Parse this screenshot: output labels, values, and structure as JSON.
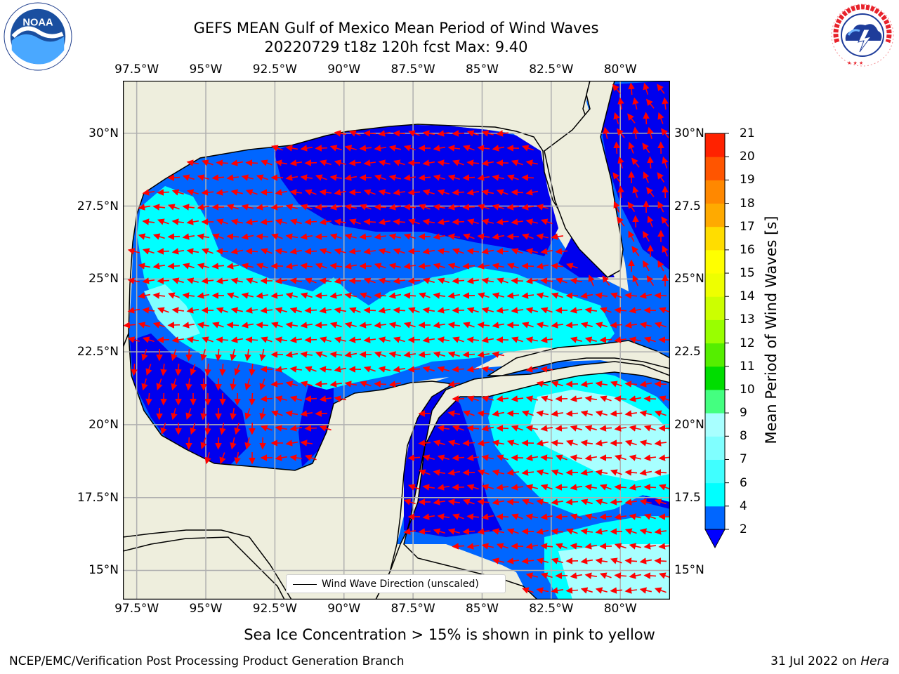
{
  "header": {
    "title_line1": "GEFS MEAN Gulf of Mexico Mean Period of Wind Waves",
    "title_line2": "20220729 t18z 120h fcst   Max: 9.40"
  },
  "logos": {
    "left": {
      "icon": "noaa-logo",
      "text": "NOAA",
      "ring_text": "NATIONAL OCEANIC AND ATMOSPHERIC ADMINISTRATION · U.S. DEPARTMENT OF COMMERCE"
    },
    "right": {
      "icon": "nws-logo",
      "ring_text": "NATIONAL WEATHER SERVICE"
    }
  },
  "axes": {
    "lon_labels": [
      "97.5°W",
      "95°W",
      "92.5°W",
      "90°W",
      "87.5°W",
      "85°W",
      "82.5°W",
      "80°W"
    ],
    "lon_values": [
      -97.5,
      -95,
      -92.5,
      -90,
      -87.5,
      -85,
      -82.5,
      -80
    ],
    "lat_labels": [
      "30°N",
      "27.5°N",
      "25°N",
      "22.5°N",
      "20°N",
      "17.5°N",
      "15°N"
    ],
    "lat_values": [
      30,
      27.5,
      25,
      22.5,
      20,
      17.5,
      15
    ],
    "right_lat_labels": [
      "30°N",
      "27.5",
      "25°N",
      "22.5",
      "20°N",
      "17.5",
      "15°N"
    ],
    "lon_range": [
      -98,
      -78.2
    ],
    "lat_range": [
      14,
      31.8
    ],
    "grid": true
  },
  "legend": {
    "label": "Wind Wave Direction (unscaled)",
    "line_color": "#000000"
  },
  "colorbar": {
    "title": "Mean Period of Wind Waves [s]",
    "levels": [
      2,
      4,
      6,
      7,
      8,
      9,
      10,
      11,
      12,
      13,
      14,
      15,
      16,
      17,
      18,
      19,
      20,
      21
    ],
    "labels": [
      "2",
      "4",
      "6",
      "7",
      "8",
      "9",
      "10",
      "11",
      "12",
      "13",
      "14",
      "15",
      "16",
      "17",
      "18",
      "19",
      "20",
      "21"
    ],
    "colors": [
      "#0066ff",
      "#00ffff",
      "#40ffff",
      "#80ffff",
      "#a8ffff",
      "#44ff80",
      "#00dd00",
      "#55ee00",
      "#99ff00",
      "#ccff00",
      "#eeff00",
      "#ffff00",
      "#ffdd00",
      "#ffaa00",
      "#ff8800",
      "#ff5500",
      "#ff2200",
      "#ff0000"
    ],
    "extend_color": "#0000ff"
  },
  "chart_data": {
    "type": "heatmap",
    "variable": "Mean Period of Wind Waves [s]",
    "max_value": 9.4,
    "land_color": "#eeeedd",
    "arrow_color": "#ff0000",
    "arrow_direction": "mostly westward / southwestward wind waves"
  },
  "notes": {
    "ice": "Sea Ice Concentration > 15% is shown in pink to yellow",
    "footer_left": "NCEP/EMC/Verification Post Processing Product Generation Branch",
    "footer_date": "31 Jul 2022 on ",
    "footer_host": "Hera"
  }
}
